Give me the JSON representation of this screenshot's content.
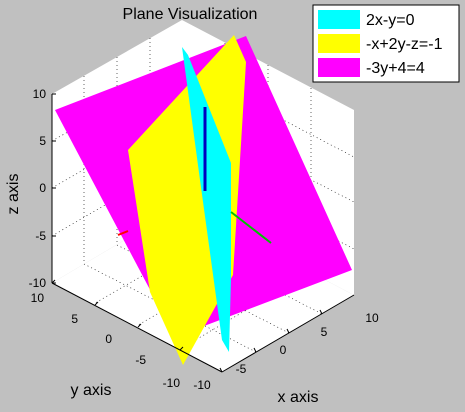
{
  "chart_data": {
    "type": "3d-surface",
    "title": "Plane Visualization",
    "xlabel": "x axis",
    "ylabel": "y axis",
    "zlabel": "z axis",
    "xlim": [
      -10,
      10
    ],
    "ylim": [
      -10,
      10
    ],
    "zlim": [
      -10,
      10
    ],
    "ticks": {
      "x": [
        "-10",
        "-5",
        "0",
        "5",
        "10"
      ],
      "y": [
        "10",
        "5",
        "0",
        "-5",
        "-10"
      ],
      "z": [
        "10",
        "5",
        "0",
        "-5",
        "-10"
      ]
    },
    "grid": true,
    "legend_position": "top-right",
    "series": [
      {
        "name": "2x-y=0",
        "color": "#00ffff"
      },
      {
        "name": "-x+2y-z=-1",
        "color": "#ffff00"
      },
      {
        "name": "-3y+4=4",
        "color": "#ff00ff"
      }
    ],
    "axis_colors": {
      "x": "#00c000",
      "y": "#ff0000",
      "z": "#0000c0"
    }
  }
}
